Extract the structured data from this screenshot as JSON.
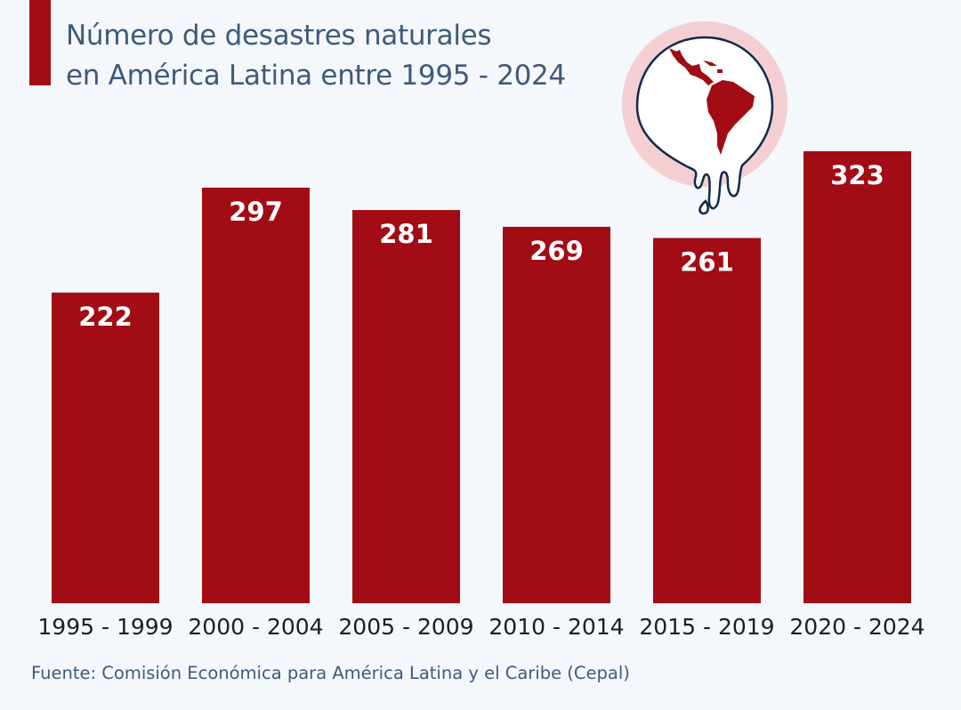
{
  "colors": {
    "background": "#f4f7fb",
    "bar": "#a20c14",
    "title": "#3f5a7a",
    "icon_ring": "#f4cfd2"
  },
  "header": {
    "title_line1": "Número de desastres naturales",
    "title_line2": "en América Latina entre 1995 - 2024"
  },
  "icon": {
    "name": "latin-america-melting-map-icon"
  },
  "footer": {
    "source": "Fuente: Comisión Económica para América Latina y el Caribe (Cepal)"
  },
  "chart_data": {
    "type": "bar",
    "title": "Número de desastres naturales en América Latina entre 1995 - 2024",
    "categories": [
      "1995 - 1999",
      "2000 - 2004",
      "2005 - 2009",
      "2010 - 2014",
      "2015 - 2019",
      "2020 - 2024"
    ],
    "values": [
      222,
      297,
      281,
      269,
      261,
      323
    ],
    "data_labels": [
      "222",
      "297",
      "281",
      "269",
      "261",
      "323"
    ],
    "ylim": [
      0,
      323
    ],
    "grid": false,
    "legend": "none"
  }
}
